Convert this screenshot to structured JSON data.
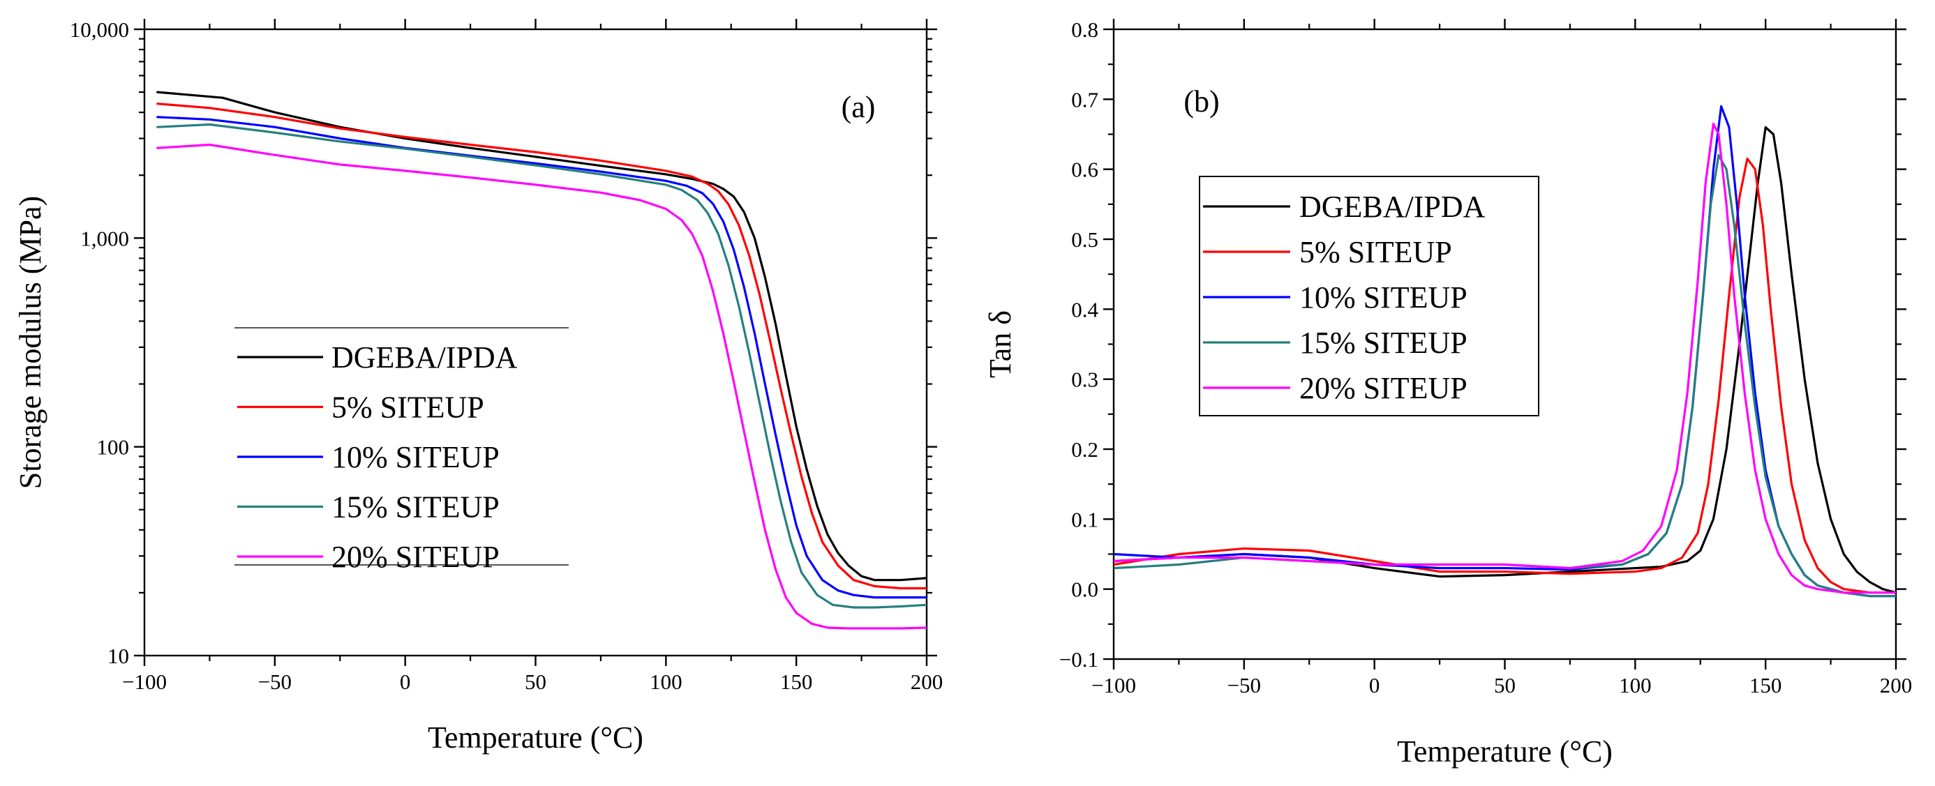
{
  "chart_data": [
    {
      "type": "line",
      "panel_label": "(a)",
      "xlabel": "Temperature (°C)",
      "ylabel": "Storage modulus (MPa)",
      "xlim": [
        -100,
        200
      ],
      "ylim": [
        10,
        10000
      ],
      "yscale": "log",
      "xticks": [
        -100,
        -50,
        0,
        50,
        100,
        150,
        200
      ],
      "xtick_labels": [
        "−100",
        "−50",
        "0",
        "50",
        "100",
        "150",
        "200"
      ],
      "yticks": [
        10,
        100,
        1000,
        10000
      ],
      "ytick_labels": [
        "10",
        "100",
        "1,000",
        "10,000"
      ],
      "grid": false,
      "legend": {
        "position": "center-left",
        "framed": true
      },
      "series": [
        {
          "name": "DGEBA/IPDA",
          "color": "#000000",
          "x": [
            -95,
            -70,
            -50,
            -25,
            0,
            25,
            50,
            75,
            100,
            110,
            118,
            122,
            126,
            130,
            134,
            138,
            142,
            146,
            150,
            154,
            158,
            162,
            166,
            170,
            175,
            180,
            190,
            200
          ],
          "y": [
            5000,
            4700,
            4000,
            3400,
            3000,
            2700,
            2450,
            2220,
            2020,
            1920,
            1820,
            1720,
            1580,
            1330,
            1000,
            650,
            390,
            220,
            125,
            78,
            52,
            38,
            31,
            27,
            24,
            23,
            23,
            23.5
          ]
        },
        {
          "name": "5% SITEUP",
          "color": "#ff0000",
          "x": [
            -95,
            -75,
            -50,
            -25,
            0,
            25,
            50,
            75,
            100,
            110,
            116,
            120,
            124,
            128,
            132,
            136,
            140,
            144,
            148,
            152,
            156,
            160,
            166,
            172,
            180,
            190,
            200
          ],
          "y": [
            4400,
            4200,
            3800,
            3350,
            3050,
            2800,
            2580,
            2350,
            2100,
            1970,
            1820,
            1680,
            1450,
            1150,
            820,
            530,
            320,
            190,
            115,
            72,
            48,
            35,
            27,
            23,
            21.5,
            21,
            21
          ]
        },
        {
          "name": "10% SITEUP",
          "color": "#0000ff",
          "x": [
            -95,
            -75,
            -50,
            -25,
            0,
            25,
            50,
            75,
            100,
            108,
            114,
            118,
            122,
            126,
            130,
            134,
            138,
            142,
            146,
            150,
            154,
            160,
            166,
            172,
            180,
            190,
            200
          ],
          "y": [
            3800,
            3700,
            3400,
            3000,
            2700,
            2480,
            2280,
            2080,
            1880,
            1780,
            1640,
            1460,
            1200,
            880,
            580,
            350,
            200,
            115,
            68,
            42,
            30,
            23,
            20.5,
            19.5,
            19,
            19,
            19
          ]
        },
        {
          "name": "15% SITEUP",
          "color": "#267f7f",
          "x": [
            -95,
            -75,
            -50,
            -25,
            0,
            25,
            50,
            75,
            100,
            106,
            112,
            116,
            120,
            124,
            128,
            132,
            136,
            140,
            144,
            148,
            152,
            158,
            164,
            172,
            180,
            190,
            200
          ],
          "y": [
            3400,
            3500,
            3200,
            2900,
            2680,
            2450,
            2230,
            2020,
            1800,
            1700,
            1520,
            1320,
            1050,
            740,
            470,
            280,
            160,
            92,
            55,
            35,
            25,
            19.5,
            17.5,
            17,
            17,
            17.2,
            17.5
          ]
        },
        {
          "name": "20% SITEUP",
          "color": "#ff00ff",
          "x": [
            -95,
            -75,
            -50,
            -25,
            0,
            25,
            50,
            75,
            90,
            100,
            106,
            110,
            114,
            118,
            122,
            126,
            130,
            134,
            138,
            142,
            146,
            150,
            156,
            162,
            170,
            180,
            190,
            200
          ],
          "y": [
            2700,
            2800,
            2500,
            2250,
            2100,
            1950,
            1800,
            1650,
            1520,
            1380,
            1220,
            1050,
            820,
            560,
            350,
            205,
            118,
            68,
            40,
            26,
            19,
            16,
            14.2,
            13.6,
            13.5,
            13.5,
            13.5,
            13.6
          ]
        }
      ]
    },
    {
      "type": "line",
      "panel_label": "(b)",
      "xlabel": "Temperature (°C)",
      "ylabel": "Tan δ",
      "xlim": [
        -100,
        200
      ],
      "ylim": [
        -0.1,
        0.8
      ],
      "xticks": [
        -100,
        -50,
        0,
        50,
        100,
        150,
        200
      ],
      "xtick_labels": [
        "−100",
        "−50",
        "0",
        "50",
        "100",
        "150",
        "200"
      ],
      "yticks": [
        -0.1,
        0.0,
        0.1,
        0.2,
        0.3,
        0.4,
        0.5,
        0.6,
        0.7,
        0.8
      ],
      "ytick_labels": [
        "−0.1",
        "0.0",
        "0.1",
        "0.2",
        "0.3",
        "0.4",
        "0.5",
        "0.6",
        "0.7",
        "0.8"
      ],
      "grid": false,
      "legend": {
        "position": "top-left",
        "framed": true
      },
      "series": [
        {
          "name": "DGEBA/IPDA",
          "color": "#000000",
          "x": [
            -100,
            -75,
            -50,
            -25,
            0,
            25,
            50,
            75,
            100,
            110,
            120,
            125,
            130,
            135,
            140,
            144,
            147,
            150,
            153,
            156,
            160,
            165,
            170,
            175,
            180,
            185,
            190,
            195,
            200
          ],
          "y": [
            0.04,
            0.045,
            0.05,
            0.045,
            0.03,
            0.018,
            0.02,
            0.025,
            0.03,
            0.032,
            0.04,
            0.055,
            0.1,
            0.2,
            0.35,
            0.48,
            0.58,
            0.66,
            0.65,
            0.58,
            0.45,
            0.3,
            0.18,
            0.1,
            0.05,
            0.025,
            0.01,
            0.0,
            -0.005
          ]
        },
        {
          "name": "5% SITEUP",
          "color": "#ff0000",
          "x": [
            -100,
            -75,
            -50,
            -25,
            0,
            25,
            50,
            75,
            100,
            110,
            118,
            124,
            128,
            132,
            136,
            140,
            143,
            146,
            149,
            152,
            156,
            160,
            165,
            170,
            175,
            180,
            190,
            200
          ],
          "y": [
            0.035,
            0.05,
            0.058,
            0.055,
            0.04,
            0.025,
            0.025,
            0.022,
            0.025,
            0.03,
            0.045,
            0.08,
            0.15,
            0.27,
            0.42,
            0.56,
            0.615,
            0.6,
            0.52,
            0.4,
            0.26,
            0.15,
            0.07,
            0.03,
            0.01,
            0.0,
            -0.005,
            -0.005
          ]
        },
        {
          "name": "10% SITEUP",
          "color": "#0000ff",
          "x": [
            -100,
            -75,
            -50,
            -25,
            0,
            25,
            50,
            75,
            95,
            105,
            112,
            118,
            122,
            126,
            130,
            133,
            136,
            139,
            142,
            146,
            150,
            155,
            160,
            165,
            170,
            180,
            190,
            200
          ],
          "y": [
            0.05,
            0.045,
            0.05,
            0.045,
            0.035,
            0.03,
            0.03,
            0.028,
            0.035,
            0.05,
            0.08,
            0.15,
            0.26,
            0.42,
            0.6,
            0.69,
            0.66,
            0.55,
            0.42,
            0.28,
            0.17,
            0.09,
            0.05,
            0.02,
            0.005,
            -0.005,
            -0.01,
            -0.01
          ]
        },
        {
          "name": "15% SITEUP",
          "color": "#267f7f",
          "x": [
            -100,
            -75,
            -50,
            -25,
            0,
            25,
            50,
            75,
            95,
            105,
            112,
            118,
            122,
            126,
            129,
            132,
            135,
            138,
            142,
            146,
            150,
            155,
            160,
            165,
            170,
            180,
            190,
            200
          ],
          "y": [
            0.03,
            0.035,
            0.045,
            0.04,
            0.035,
            0.035,
            0.035,
            0.03,
            0.035,
            0.05,
            0.08,
            0.15,
            0.26,
            0.42,
            0.55,
            0.62,
            0.6,
            0.52,
            0.38,
            0.26,
            0.16,
            0.09,
            0.05,
            0.02,
            0.005,
            -0.005,
            -0.01,
            -0.01
          ]
        },
        {
          "name": "20% SITEUP",
          "color": "#ff00ff",
          "x": [
            -100,
            -75,
            -50,
            -25,
            0,
            25,
            50,
            75,
            95,
            103,
            110,
            116,
            120,
            124,
            127,
            130,
            132,
            135,
            138,
            142,
            146,
            150,
            155,
            160,
            165,
            170,
            180,
            190,
            200
          ],
          "y": [
            0.04,
            0.045,
            0.045,
            0.04,
            0.035,
            0.035,
            0.035,
            0.03,
            0.04,
            0.055,
            0.09,
            0.17,
            0.28,
            0.44,
            0.58,
            0.665,
            0.65,
            0.55,
            0.42,
            0.28,
            0.17,
            0.1,
            0.05,
            0.02,
            0.005,
            0.0,
            -0.005,
            -0.005,
            -0.005
          ]
        }
      ]
    }
  ]
}
